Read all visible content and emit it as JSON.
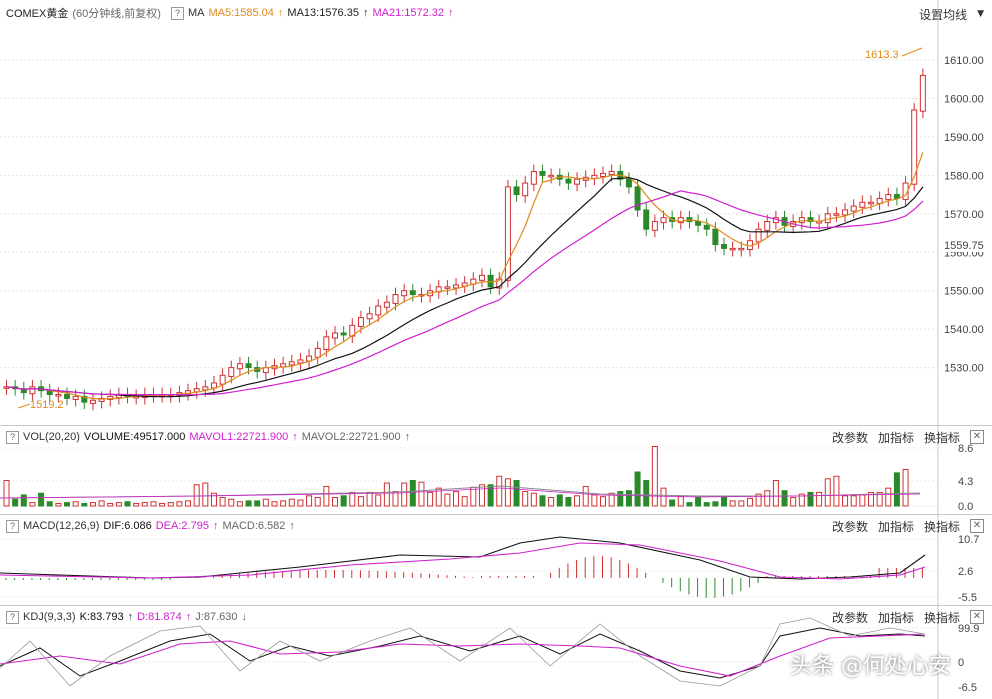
{
  "main": {
    "symbol": "COMEX黄金",
    "period": "(60分钟线,前复权)",
    "ma_label": "MA",
    "ma5": "MA5:1585.04",
    "ma13": "MA13:1576.35",
    "ma21": "MA21:1572.32",
    "settings": "设置均线",
    "high_label": "1613.3",
    "low_label": "1519.2",
    "current_price": "1559.75",
    "y_ticks": [
      "1610.00",
      "1600.00",
      "1590.00",
      "1580.00",
      "1570.00",
      "1560.00",
      "1550.00",
      "1540.00",
      "1530.00"
    ]
  },
  "vol": {
    "name": "VOL(20,20)",
    "volume": "VOLUME:49517.000",
    "mavol1": "MAVOL1:22721.900",
    "mavol2": "MAVOL2:22721.900",
    "y_ticks": [
      "8.6",
      "4.3",
      "0.0"
    ]
  },
  "macd": {
    "name": "MACD(12,26,9)",
    "dif": "DIF:6.086",
    "dea": "DEA:2.795",
    "macd": "MACD:6.582",
    "y_ticks": [
      "10.7",
      "2.6",
      "-5.5"
    ]
  },
  "kdj": {
    "name": "KDJ(9,3,3)",
    "k": "K:83.793",
    "d": "D:81.874",
    "j": "J:87.630",
    "y_ticks": [
      "99.9",
      "0"
    ]
  },
  "buttons": {
    "params": "改参数",
    "add": "加指标",
    "swap": "换指标",
    "close": "✕"
  },
  "watermark": "头条 @何处心安",
  "colors": {
    "up": "#d03030",
    "down": "#2a8a2a",
    "ma5": "#e08a1a",
    "ma13": "#111111",
    "ma21": "#d020d0"
  }
}
